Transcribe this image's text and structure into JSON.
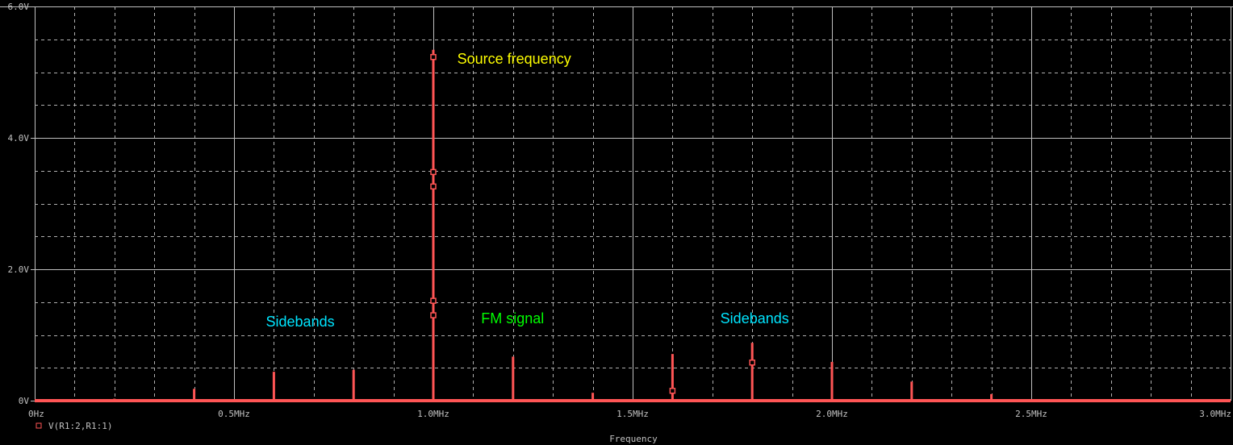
{
  "chart_data": {
    "type": "bar",
    "xlabel": "Frequency",
    "ylabel": "",
    "xlim": [
      0,
      3.0
    ],
    "ylim": [
      0,
      6.0
    ],
    "x_unit": "MHz",
    "x_ticks": [
      "0Hz",
      "0.5MHz",
      "1.0MHz",
      "1.5MHz",
      "2.0MHz",
      "2.5MHz",
      "3.0MHz"
    ],
    "y_ticks": [
      "0V",
      "2.0V",
      "4.0V",
      "6.0V"
    ],
    "grid": true,
    "legend": "bottom-left",
    "series": [
      {
        "name": "V(R1:2,R1:1)",
        "color": "#ff5555",
        "x": [
          0.2,
          0.4,
          0.6,
          0.8,
          1.0,
          1.2,
          1.4,
          1.6,
          1.8,
          2.0,
          2.2,
          2.4,
          2.6
        ],
        "values": [
          0.03,
          0.18,
          0.44,
          0.47,
          5.34,
          0.67,
          0.12,
          0.71,
          0.88,
          0.59,
          0.29,
          0.1,
          0.02
        ]
      }
    ],
    "annotations": [
      {
        "text": "Source frequency",
        "x": 1.06,
        "y": 5.2,
        "color": "#ffff00"
      },
      {
        "text": "Sidebands",
        "x": 0.58,
        "y": 1.2,
        "color": "#00e5ff"
      },
      {
        "text": "FM signal",
        "x": 1.12,
        "y": 1.25,
        "color": "#00ff00"
      },
      {
        "text": "Sidebands",
        "x": 1.72,
        "y": 1.25,
        "color": "#00e5ff"
      }
    ]
  }
}
